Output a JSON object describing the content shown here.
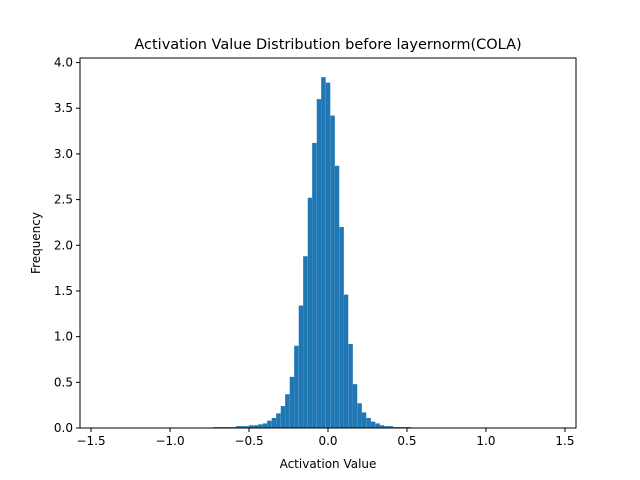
{
  "chart_data": {
    "type": "bar",
    "title": "Activation Value Distribution before layernorm(COLA)",
    "xlabel": "Activation Value",
    "ylabel": "Frequency",
    "xlim": [
      -1.57,
      1.57
    ],
    "ylim": [
      0,
      4.05
    ],
    "bin_width": 0.0285,
    "bar_color": "#1f77b4",
    "xticks": [
      -1.5,
      -1.0,
      -0.5,
      0.0,
      0.5,
      1.0,
      1.5
    ],
    "xtick_labels": [
      "−1.5",
      "−1.0",
      "−0.5",
      "0.0",
      "0.5",
      "1.0",
      "1.5"
    ],
    "yticks": [
      0.0,
      0.5,
      1.0,
      1.5,
      2.0,
      2.5,
      3.0,
      3.5,
      4.0
    ],
    "ytick_labels": [
      "0.0",
      "0.5",
      "1.0",
      "1.5",
      "2.0",
      "2.5",
      "3.0",
      "3.5",
      "4.0"
    ],
    "bin_centers": [
      -0.713,
      -0.684,
      -0.656,
      -0.627,
      -0.599,
      -0.57,
      -0.542,
      -0.513,
      -0.485,
      -0.456,
      -0.428,
      -0.399,
      -0.371,
      -0.342,
      -0.314,
      -0.285,
      -0.257,
      -0.228,
      -0.2,
      -0.171,
      -0.143,
      -0.114,
      -0.086,
      -0.057,
      -0.029,
      0.0,
      0.029,
      0.057,
      0.086,
      0.114,
      0.143,
      0.171,
      0.2,
      0.228,
      0.257,
      0.285,
      0.314,
      0.342,
      0.371,
      0.399,
      0.428,
      0.456,
      0.485,
      0.513
    ],
    "values": [
      0.01,
      0.01,
      0.01,
      0.01,
      0.01,
      0.02,
      0.02,
      0.02,
      0.03,
      0.03,
      0.04,
      0.05,
      0.08,
      0.11,
      0.16,
      0.24,
      0.37,
      0.56,
      0.9,
      1.34,
      1.88,
      2.52,
      3.12,
      3.6,
      3.84,
      3.78,
      3.42,
      2.87,
      2.2,
      1.46,
      0.92,
      0.48,
      0.27,
      0.17,
      0.11,
      0.07,
      0.05,
      0.03,
      0.02,
      0.02,
      0.01,
      0.01,
      0.01,
      0.01
    ]
  }
}
